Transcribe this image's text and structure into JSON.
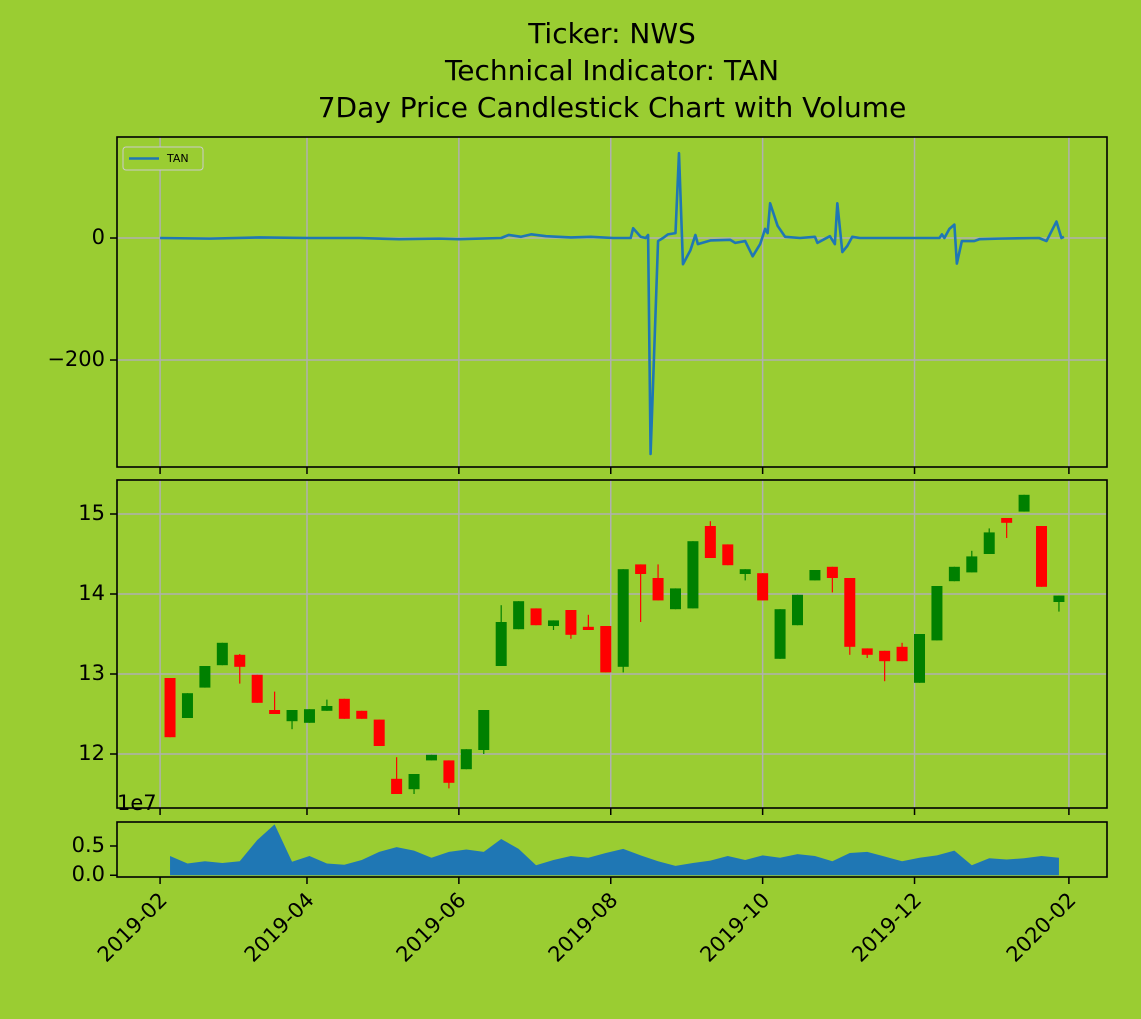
{
  "chart_data": [
    {
      "type": "line",
      "title": [
        "Ticker: NWS",
        "Technical Indicator: TAN",
        "7Day Price Candlestick Chart with Volume"
      ],
      "x": [
        0,
        20,
        40,
        60,
        80,
        96,
        112,
        120,
        137,
        140,
        145,
        149,
        155,
        165,
        173,
        182,
        189,
        190,
        193,
        195,
        196,
        197,
        200,
        202,
        204,
        207,
        208.4,
        210,
        213,
        215,
        216,
        221,
        229,
        231,
        235,
        238,
        241,
        243,
        244,
        245,
        248,
        251,
        257,
        263,
        264,
        269,
        271,
        272,
        274,
        276,
        278,
        281,
        297,
        313,
        314,
        315,
        317,
        319,
        320,
        322,
        327,
        329,
        337,
        353,
        356,
        360,
        362,
        363
      ],
      "series": [
        {
          "name": "TAN",
          "color": "#1f77b4",
          "values": [
            0,
            -1,
            1,
            0,
            0,
            -2,
            -1,
            -2,
            0,
            5,
            2,
            6,
            3,
            1,
            2,
            0,
            0,
            16,
            2,
            0,
            5,
            -354,
            -5,
            0,
            6,
            8,
            139,
            -43,
            -20,
            5,
            -10,
            -4,
            -3,
            -8,
            -5,
            -30,
            -10,
            15,
            8,
            57,
            20,
            2,
            0,
            2,
            -8,
            3,
            -10,
            57,
            -23,
            -13,
            2,
            0,
            0,
            0,
            6,
            0,
            15,
            22,
            -42,
            -5,
            -5,
            -2,
            -1,
            0,
            -5,
            27,
            0,
            2
          ]
        }
      ],
      "ylim": [
        -375.4,
        165.6
      ],
      "yticks": [
        {
          "value": -200,
          "label": "−200"
        },
        0
      ],
      "grid": true,
      "legend": "upper left"
    },
    {
      "type": "candlestick",
      "x": [
        4,
        11,
        18,
        25,
        32,
        39,
        46,
        53,
        60,
        67,
        74,
        81,
        88,
        95,
        102,
        109,
        116,
        123,
        130,
        137,
        144,
        151,
        158,
        165,
        172,
        179,
        186,
        193,
        200,
        207,
        214,
        221,
        228,
        235,
        242,
        249,
        256,
        263,
        270,
        277,
        284,
        291,
        298,
        305,
        312,
        319,
        326,
        333,
        340,
        347,
        354,
        361
      ],
      "open": [
        12.95,
        12.45,
        12.83,
        13.11,
        13.24,
        12.99,
        12.55,
        12.41,
        12.39,
        12.54,
        12.69,
        12.54,
        12.43,
        11.69,
        11.56,
        11.92,
        11.92,
        11.81,
        12.05,
        13.1,
        13.56,
        13.82,
        13.6,
        13.8,
        13.59,
        13.6,
        13.09,
        14.37,
        14.2,
        13.81,
        13.82,
        14.85,
        14.62,
        14.25,
        14.26,
        13.19,
        13.61,
        14.17,
        14.34,
        14.2,
        13.32,
        13.29,
        13.34,
        12.89,
        13.42,
        14.16,
        14.27,
        14.5,
        14.95,
        15.03,
        14.85,
        13.9
      ],
      "high": [
        12.95,
        12.76,
        13.1,
        13.39,
        13.25,
        12.99,
        12.78,
        12.55,
        12.56,
        12.68,
        12.69,
        12.54,
        12.43,
        11.96,
        11.75,
        11.99,
        11.92,
        12.06,
        12.55,
        13.86,
        13.91,
        13.82,
        13.67,
        13.8,
        13.74,
        13.6,
        14.31,
        14.37,
        14.37,
        14.07,
        14.66,
        14.91,
        14.62,
        14.31,
        14.26,
        13.81,
        13.99,
        14.3,
        14.34,
        14.2,
        13.32,
        13.29,
        13.39,
        13.5,
        14.1,
        14.34,
        14.54,
        14.82,
        14.95,
        15.24,
        14.85,
        13.98
      ],
      "low": [
        12.21,
        12.45,
        12.83,
        13.11,
        12.88,
        12.64,
        12.5,
        12.31,
        12.39,
        12.54,
        12.44,
        12.44,
        12.1,
        11.5,
        11.5,
        11.92,
        11.57,
        11.81,
        12.0,
        13.1,
        13.56,
        13.61,
        13.55,
        13.44,
        13.55,
        13.02,
        13.02,
        13.65,
        13.92,
        13.81,
        13.82,
        14.45,
        14.36,
        14.17,
        13.92,
        13.19,
        13.61,
        14.17,
        14.02,
        13.24,
        13.2,
        12.91,
        13.16,
        12.89,
        13.42,
        14.16,
        14.27,
        14.5,
        14.7,
        15.03,
        14.09,
        13.78
      ],
      "close": [
        12.21,
        12.76,
        13.1,
        13.39,
        13.09,
        12.64,
        12.5,
        12.55,
        12.56,
        12.6,
        12.44,
        12.44,
        12.1,
        11.5,
        11.75,
        11.99,
        11.64,
        12.06,
        12.55,
        13.65,
        13.91,
        13.61,
        13.67,
        13.49,
        13.55,
        13.02,
        14.31,
        14.25,
        13.92,
        14.07,
        14.66,
        14.45,
        14.36,
        14.31,
        13.92,
        13.81,
        13.99,
        14.3,
        14.2,
        13.34,
        13.24,
        13.16,
        13.16,
        13.5,
        14.1,
        14.34,
        14.47,
        14.77,
        14.89,
        15.24,
        14.09,
        13.98
      ],
      "up_color": "green",
      "down_color": "red",
      "ylim": [
        11.325,
        15.425
      ],
      "yticks": [
        12,
        13,
        14,
        15
      ],
      "grid": true
    },
    {
      "type": "area",
      "offset_text": "1e7",
      "x": [
        4,
        11,
        18,
        25,
        32,
        39,
        46,
        53,
        60,
        67,
        74,
        81,
        88,
        95,
        102,
        109,
        116,
        123,
        130,
        137,
        144,
        151,
        158,
        165,
        172,
        179,
        186,
        193,
        200,
        207,
        214,
        221,
        228,
        235,
        242,
        249,
        256,
        263,
        270,
        277,
        284,
        291,
        298,
        305,
        312,
        319,
        326,
        333,
        340,
        347,
        354,
        361
      ],
      "values": [
        0.33,
        0.2,
        0.24,
        0.21,
        0.24,
        0.6,
        0.87,
        0.23,
        0.33,
        0.2,
        0.18,
        0.26,
        0.4,
        0.48,
        0.42,
        0.3,
        0.4,
        0.44,
        0.4,
        0.62,
        0.45,
        0.17,
        0.26,
        0.33,
        0.3,
        0.38,
        0.45,
        0.34,
        0.24,
        0.16,
        0.21,
        0.25,
        0.33,
        0.26,
        0.34,
        0.3,
        0.36,
        0.33,
        0.24,
        0.38,
        0.4,
        0.32,
        0.24,
        0.3,
        0.34,
        0.42,
        0.17,
        0.29,
        0.27,
        0.29,
        0.33,
        0.3
      ],
      "color": "#1f77b4",
      "ylim": [
        -0.03,
        0.91
      ],
      "yticks": [
        {
          "value": 0,
          "label": "0.0"
        },
        0.5
      ],
      "xlim": [
        -17.3,
        380.3
      ],
      "xticks": [
        {
          "value": 0,
          "label": "2019-02"
        },
        {
          "value": 59,
          "label": "2019-04"
        },
        {
          "value": 120,
          "label": "2019-06"
        },
        {
          "value": 181,
          "label": "2019-08"
        },
        {
          "value": 242,
          "label": "2019-10"
        },
        {
          "value": 303,
          "label": "2019-12"
        },
        {
          "value": 365,
          "label": "2020-02"
        }
      ],
      "grid": false
    }
  ]
}
